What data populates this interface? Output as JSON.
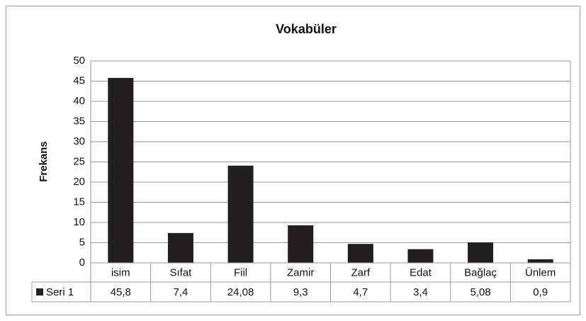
{
  "chart_data": {
    "type": "bar",
    "title": "Vokabüler",
    "y_label": "Frekans",
    "categories": [
      "isim",
      "Sıfat",
      "Fiil",
      "Zamir",
      "Zarf",
      "Edat",
      "Bağlaç",
      "Ünlem"
    ],
    "series": [
      {
        "name": "Seri 1",
        "color": "#231f20",
        "values": [
          45.8,
          7.4,
          24.08,
          9.3,
          4.7,
          3.4,
          5.08,
          0.9
        ],
        "value_labels": [
          "45,8",
          "7,4",
          "24,08",
          "9,3",
          "4,7",
          "3,4",
          "5,08",
          "0,9"
        ]
      }
    ],
    "ylim": [
      0,
      50
    ],
    "yticks": [
      0,
      5,
      10,
      15,
      20,
      25,
      30,
      35,
      40,
      45,
      50
    ],
    "grid": true
  }
}
